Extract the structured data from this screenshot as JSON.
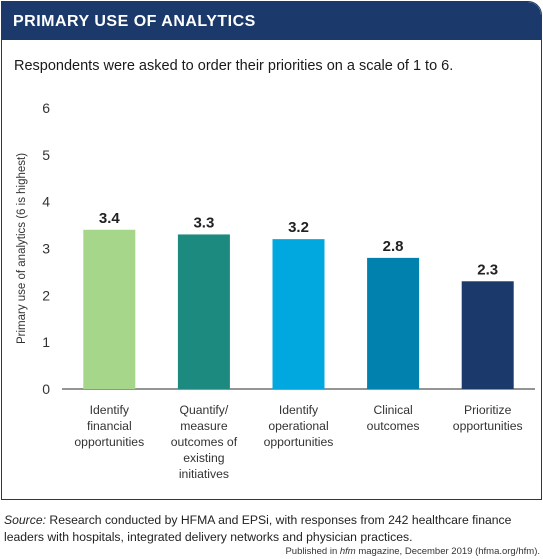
{
  "header": {
    "title": "PRIMARY USE OF ANALYTICS",
    "subtitle": "Respondents were asked to order their priorities on a scale of 1 to 6."
  },
  "chart_data": {
    "type": "bar",
    "categories": [
      [
        "Identify",
        "financial",
        "opportunities"
      ],
      [
        "Quantify/",
        "measure",
        "outcomes of",
        "existing",
        "initiatives"
      ],
      [
        "Identify",
        "operational",
        "opportunities"
      ],
      [
        "Clinical",
        "outcomes"
      ],
      [
        "Prioritize",
        "opportunities"
      ]
    ],
    "values": [
      3.4,
      3.3,
      3.2,
      2.8,
      2.3
    ],
    "value_labels": [
      "3.4",
      "3.3",
      "3.2",
      "2.8",
      "2.3"
    ],
    "bar_colors": [
      "#a5d68a",
      "#1d8a80",
      "#00a8df",
      "#0081ae",
      "#1b3a6b"
    ],
    "ylabel": "Primary use of analytics (6 is highest)",
    "yticks": [
      "0",
      "1",
      "2",
      "3",
      "4",
      "5",
      "6"
    ],
    "ylim": [
      0,
      6
    ],
    "grid": false
  },
  "footer": {
    "source_label": "Source:",
    "source_text": " Research conducted by HFMA and EPSi, with responses from 242 healthcare finance leaders with hospitals, integrated delivery networks and physician practices.",
    "published_prefix": "Published in ",
    "published_magazine": "hfm",
    "published_suffix": " magazine, December 2019 (hfma.org/hfm)."
  },
  "colors": {
    "banner": "#1b3a6b",
    "axis": "#555555"
  }
}
